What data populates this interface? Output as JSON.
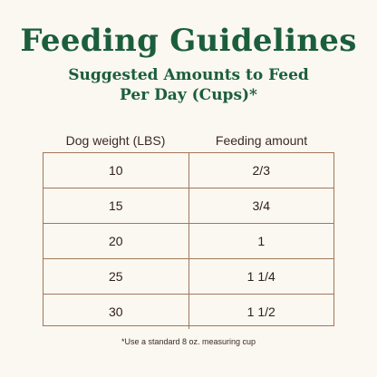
{
  "title": "Feeding Guidelines",
  "subtitle": {
    "line1": "Suggested Amounts to Feed",
    "line2": "Per Day (Cups)*"
  },
  "table": {
    "headers": [
      "Dog weight (LBS)",
      "Feeding amount"
    ],
    "rows": [
      [
        "10",
        "2/3"
      ],
      [
        "15",
        "3/4"
      ],
      [
        "20",
        "1"
      ],
      [
        "25",
        "1 1/4"
      ],
      [
        "30",
        "1 1/2"
      ]
    ]
  },
  "footnote": "*Use a standard 8 oz. measuring cup",
  "colors": {
    "title_green": "#1b5e3b",
    "border_brown": "#a0785a",
    "background": "#fbf7f1"
  }
}
